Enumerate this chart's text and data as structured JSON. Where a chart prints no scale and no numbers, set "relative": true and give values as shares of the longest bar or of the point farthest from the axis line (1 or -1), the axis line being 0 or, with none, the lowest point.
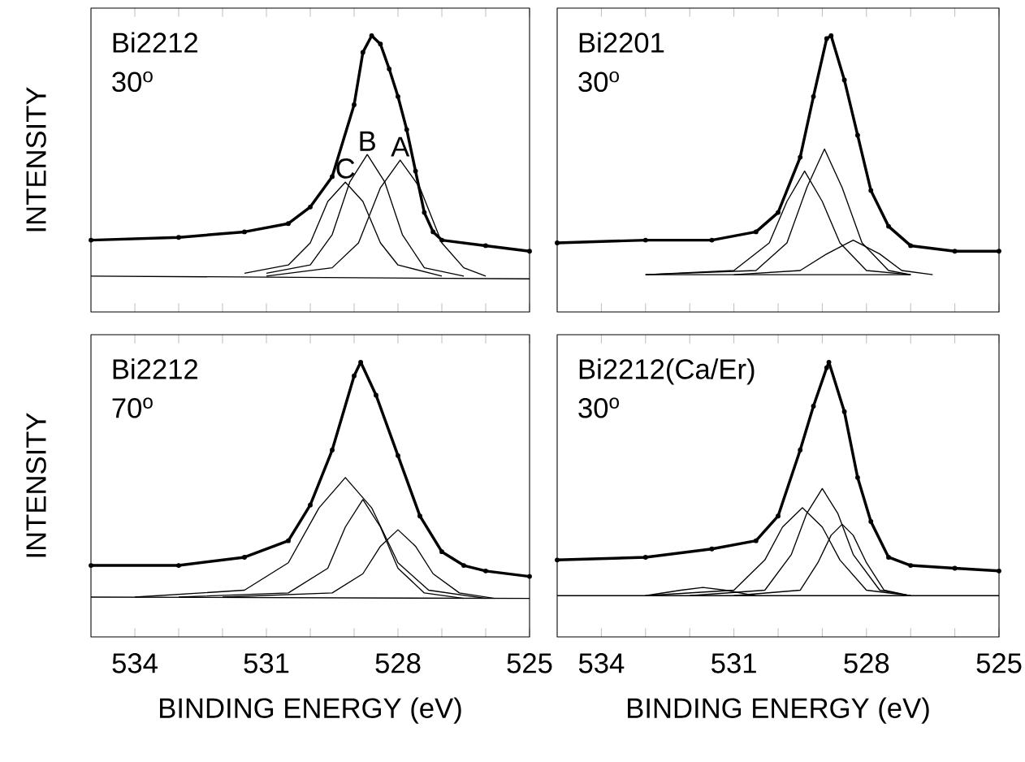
{
  "chart_data": [
    {
      "type": "line",
      "relative": true,
      "ylabel": "INTENSITY",
      "xlim": [
        535,
        525
      ],
      "tick_labels": false,
      "xticks": [
        {
          "value": 534,
          "label": null
        },
        {
          "value": 533,
          "label": null
        },
        {
          "value": 532,
          "label": null
        },
        {
          "value": 531,
          "label": null
        },
        {
          "value": 530,
          "label": null
        },
        {
          "value": 529,
          "label": null
        },
        {
          "value": 528,
          "label": null
        },
        {
          "value": 527,
          "label": null
        },
        {
          "value": 526,
          "label": null
        },
        {
          "value": 525,
          "label": null
        }
      ],
      "annotations": [
        "Bi2212",
        "30$^{o}$",
        {
          "text": "C",
          "x": 529.2,
          "y": 0.47
        },
        {
          "text": "B",
          "x": 528.7,
          "y": 0.57
        },
        {
          "text": "A",
          "x": 527.95,
          "y": 0.55
        }
      ],
      "series": [
        {
          "color": "#000000",
          "marker": "circle",
          "x": [
            535,
            533,
            531.5,
            530.5,
            530,
            529.5,
            529,
            528.8,
            528.6,
            528.4,
            528.2,
            528,
            527.8,
            527.6,
            527.4,
            527.2,
            527,
            526,
            525
          ],
          "values": [
            0.26,
            0.27,
            0.29,
            0.32,
            0.38,
            0.49,
            0.75,
            0.94,
            1.0,
            0.97,
            0.88,
            0.78,
            0.66,
            0.51,
            0.36,
            0.29,
            0.26,
            0.24,
            0.22
          ]
        },
        {
          "color": "#000000",
          "x": [
            535,
            525
          ],
          "values": [
            0.13,
            0.12
          ]
        },
        {
          "color": "#000000",
          "x": [
            531.5,
            530.5,
            530,
            529.6,
            529.2,
            528.8,
            528.4,
            528,
            527
          ],
          "values": [
            0.14,
            0.17,
            0.25,
            0.4,
            0.47,
            0.4,
            0.25,
            0.17,
            0.13
          ]
        },
        {
          "color": "#000000",
          "x": [
            531,
            530,
            529.5,
            529.1,
            528.7,
            528.3,
            527.9,
            527.4,
            526.5
          ],
          "values": [
            0.14,
            0.17,
            0.28,
            0.47,
            0.57,
            0.47,
            0.28,
            0.16,
            0.13
          ]
        },
        {
          "color": "#000000",
          "x": [
            531,
            529.5,
            528.9,
            528.4,
            527.95,
            527.5,
            527,
            526.5,
            526
          ],
          "values": [
            0.13,
            0.16,
            0.25,
            0.45,
            0.55,
            0.45,
            0.25,
            0.16,
            0.13
          ]
        }
      ]
    },
    {
      "type": "line",
      "relative": true,
      "xlim": [
        535,
        525
      ],
      "tick_labels": false,
      "xticks": [
        {
          "value": 534,
          "label": null
        },
        {
          "value": 533,
          "label": null
        },
        {
          "value": 532,
          "label": null
        },
        {
          "value": 531,
          "label": null
        },
        {
          "value": 530,
          "label": null
        },
        {
          "value": 529,
          "label": null
        },
        {
          "value": 528,
          "label": null
        },
        {
          "value": 527,
          "label": null
        },
        {
          "value": 526,
          "label": null
        },
        {
          "value": 525,
          "label": null
        }
      ],
      "annotations": [
        "Bi2201",
        "30$^{o}$"
      ],
      "series": [
        {
          "color": "#000000",
          "marker": "circle",
          "x": [
            535,
            533,
            531.5,
            530.5,
            530,
            529.5,
            529.2,
            528.9,
            528.8,
            528.5,
            528.2,
            527.9,
            527.5,
            527,
            526,
            525
          ],
          "values": [
            0.25,
            0.26,
            0.26,
            0.29,
            0.36,
            0.56,
            0.78,
            0.99,
            1.0,
            0.84,
            0.64,
            0.44,
            0.31,
            0.24,
            0.22,
            0.22
          ]
        },
        {
          "color": "#000000",
          "x": [
            533,
            527
          ],
          "values": [
            0.135,
            0.135
          ]
        },
        {
          "color": "#000000",
          "x": [
            533,
            531,
            530.2,
            529.8,
            529.4,
            529,
            528.6,
            528,
            527
          ],
          "values": [
            0.135,
            0.15,
            0.25,
            0.4,
            0.51,
            0.4,
            0.25,
            0.15,
            0.135
          ]
        },
        {
          "color": "#000000",
          "x": [
            533,
            530.5,
            529.8,
            529.35,
            528.95,
            528.55,
            528.1,
            527.5,
            527
          ],
          "values": [
            0.135,
            0.15,
            0.25,
            0.45,
            0.59,
            0.45,
            0.25,
            0.15,
            0.135
          ]
        },
        {
          "color": "#000000",
          "x": [
            531,
            529.5,
            528.9,
            528.3,
            527.7,
            527.2,
            526.5
          ],
          "values": [
            0.135,
            0.15,
            0.21,
            0.26,
            0.21,
            0.15,
            0.135
          ]
        }
      ]
    },
    {
      "type": "line",
      "relative": true,
      "ylabel": "INTENSITY",
      "xlabel": "BINDING ENERGY (eV)",
      "xlim": [
        535,
        525
      ],
      "tick_labels": "x",
      "xticks": [
        534,
        {
          "value": 533,
          "label": null
        },
        {
          "value": 532,
          "label": null
        },
        531,
        {
          "value": 530,
          "label": null
        },
        {
          "value": 529,
          "label": null
        },
        528,
        {
          "value": 527,
          "label": null
        },
        {
          "value": 526,
          "label": null
        },
        525
      ],
      "annotations": [
        "Bi2212",
        "70$^{o}$"
      ],
      "series": [
        {
          "color": "#000000",
          "marker": "circle",
          "x": [
            535,
            533,
            531.5,
            530.5,
            530,
            529.5,
            529,
            528.85,
            528.5,
            528,
            527.5,
            527,
            526.5,
            526,
            525
          ],
          "values": [
            0.26,
            0.26,
            0.29,
            0.35,
            0.48,
            0.68,
            0.95,
            1.0,
            0.88,
            0.66,
            0.44,
            0.31,
            0.26,
            0.24,
            0.22
          ]
        },
        {
          "color": "#000000",
          "x": [
            535,
            525
          ],
          "values": [
            0.145,
            0.14
          ]
        },
        {
          "color": "#000000",
          "x": [
            534,
            531.5,
            530.5,
            529.8,
            529.2,
            528.6,
            528,
            527.3,
            526
          ],
          "values": [
            0.145,
            0.17,
            0.27,
            0.47,
            0.58,
            0.47,
            0.27,
            0.17,
            0.14
          ]
        },
        {
          "color": "#000000",
          "x": [
            533,
            530.5,
            529.6,
            529.2,
            528.8,
            528.4,
            528,
            527.4,
            526.5
          ],
          "values": [
            0.145,
            0.16,
            0.25,
            0.4,
            0.5,
            0.4,
            0.25,
            0.16,
            0.14
          ]
        },
        {
          "color": "#000000",
          "x": [
            532,
            529.5,
            528.8,
            528.4,
            528,
            527.6,
            527.2,
            526.6,
            525.8
          ],
          "values": [
            0.145,
            0.16,
            0.23,
            0.33,
            0.39,
            0.33,
            0.23,
            0.16,
            0.14
          ]
        }
      ]
    },
    {
      "type": "line",
      "relative": true,
      "xlabel": "BINDING ENERGY (eV)",
      "xlim": [
        535,
        525
      ],
      "tick_labels": "x",
      "xticks": [
        534,
        {
          "value": 533,
          "label": null
        },
        {
          "value": 532,
          "label": null
        },
        531,
        {
          "value": 530,
          "label": null
        },
        {
          "value": 529,
          "label": null
        },
        528,
        {
          "value": 527,
          "label": null
        },
        {
          "value": 526,
          "label": null
        },
        525
      ],
      "annotations": [
        "Bi2212(Ca/Er)",
        "30$^{o}$"
      ],
      "series": [
        {
          "color": "#000000",
          "marker": "circle",
          "x": [
            535,
            533,
            531.5,
            530.5,
            530,
            529.5,
            529.2,
            528.9,
            528.85,
            528.5,
            528.2,
            527.9,
            527.5,
            527,
            526,
            525
          ],
          "values": [
            0.28,
            0.29,
            0.32,
            0.35,
            0.44,
            0.68,
            0.84,
            0.98,
            1.0,
            0.82,
            0.58,
            0.42,
            0.29,
            0.26,
            0.25,
            0.24
          ]
        },
        {
          "color": "#000000",
          "x": [
            535,
            525
          ],
          "values": [
            0.15,
            0.15
          ]
        },
        {
          "color": "#000000",
          "x": [
            533,
            532.2,
            531.7,
            531.2,
            530.5
          ],
          "values": [
            0.15,
            0.17,
            0.18,
            0.17,
            0.15
          ]
        },
        {
          "color": "#000000",
          "x": [
            533,
            531,
            530.3,
            529.9,
            529.45,
            529,
            528.6,
            528,
            527
          ],
          "values": [
            0.15,
            0.17,
            0.28,
            0.4,
            0.47,
            0.4,
            0.28,
            0.17,
            0.15
          ]
        },
        {
          "color": "#000000",
          "x": [
            532,
            530.3,
            529.7,
            529.35,
            529,
            528.65,
            528.3,
            527.7,
            527
          ],
          "values": [
            0.15,
            0.17,
            0.3,
            0.45,
            0.54,
            0.45,
            0.3,
            0.17,
            0.15
          ]
        },
        {
          "color": "#000000",
          "x": [
            531,
            529.5,
            529.1,
            528.8,
            528.55,
            528.3,
            528,
            527.6,
            527
          ],
          "values": [
            0.15,
            0.17,
            0.27,
            0.37,
            0.41,
            0.37,
            0.27,
            0.17,
            0.15
          ]
        }
      ]
    }
  ]
}
